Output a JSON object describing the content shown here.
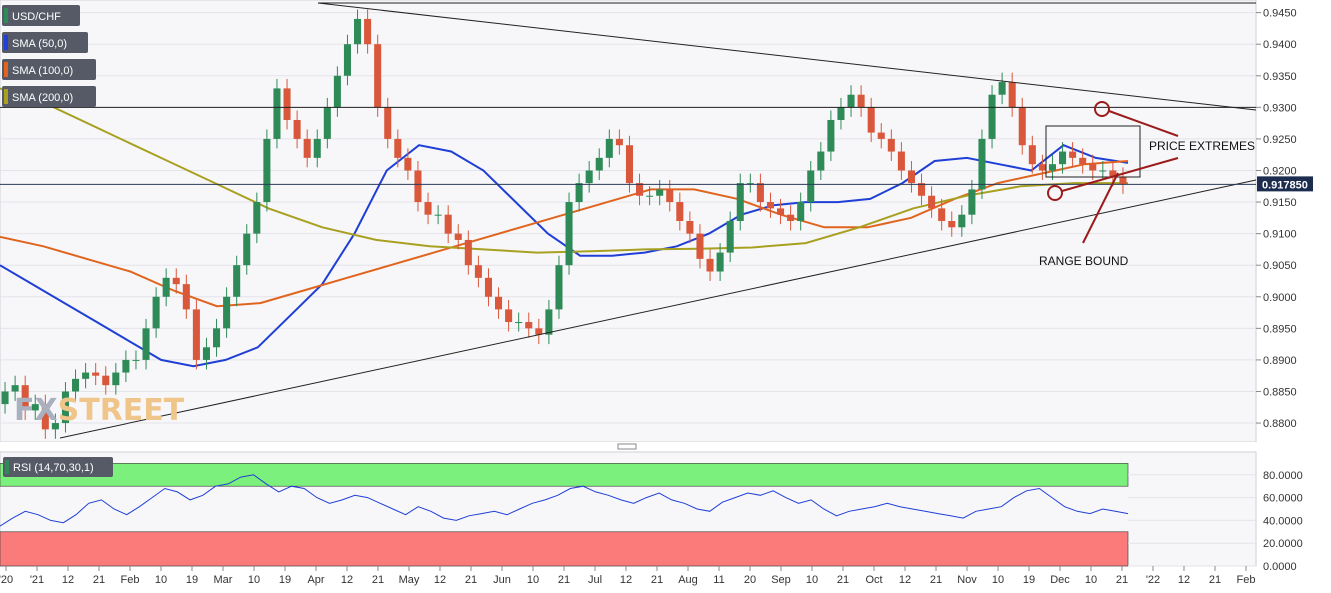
{
  "symbol": "USD/CHF",
  "legend": [
    {
      "label": "USD/CHF",
      "color": "#2e8b57"
    },
    {
      "label": "SMA (50,0)",
      "color": "#1f3fd6"
    },
    {
      "label": "SMA (100,0)",
      "color": "#e0641e"
    },
    {
      "label": "SMA (200,0)",
      "color": "#a8a020"
    }
  ],
  "watermark": {
    "part1": "FX",
    "part2": "STREET"
  },
  "last_price": "0.917850",
  "annotations": {
    "price_extremes": "PRICE EXTREMES",
    "range_bound": "RANGE BOUND"
  },
  "rsi_label": "RSI (14,70,30,1)",
  "colors": {
    "up": "#2e8b57",
    "down": "#d9573b",
    "sma50": "#1f3fd6",
    "sma100": "#e0641e",
    "sma200": "#a8a020",
    "rsi": "#1f3fd6",
    "overbought": "#7cf07c",
    "oversold": "#fb7b7b",
    "annotation": "#9b1c1c"
  },
  "chart_data": [
    {
      "type": "candlestick",
      "title": "USD/CHF",
      "y_ticks": [
        "0.9450",
        "0.9400",
        "0.9350",
        "0.9300",
        "0.9250",
        "0.9200",
        "0.9150",
        "0.9100",
        "0.9050",
        "0.9000",
        "0.8950",
        "0.8900",
        "0.8850",
        "0.8800"
      ],
      "ylim": [
        0.877,
        0.947
      ],
      "x_ticks": [
        "'20",
        "'21",
        "12",
        "21",
        "Feb",
        "10",
        "19",
        "Mar",
        "10",
        "19",
        "Apr",
        "12",
        "21",
        "May",
        "12",
        "21",
        "Jun",
        "10",
        "21",
        "Jul",
        "12",
        "21",
        "Aug",
        "11",
        "20",
        "Sep",
        "10",
        "21",
        "Oct",
        "12",
        "21",
        "Nov",
        "10",
        "19",
        "Dec",
        "10",
        "21",
        "'22",
        "12",
        "21",
        "Feb"
      ],
      "series": [
        {
          "name": "USD/CHF",
          "type": "candlestick",
          "close": [
            0.885,
            0.886,
            0.882,
            0.883,
            0.879,
            0.88,
            0.885,
            0.887,
            0.888,
            0.8875,
            0.886,
            0.888,
            0.89,
            0.89,
            0.895,
            0.9,
            0.903,
            0.902,
            0.898,
            0.89,
            0.892,
            0.895,
            0.9,
            0.905,
            0.91,
            0.915,
            0.925,
            0.933,
            0.928,
            0.925,
            0.922,
            0.925,
            0.93,
            0.935,
            0.94,
            0.944,
            0.94,
            0.93,
            0.925,
            0.922,
            0.92,
            0.915,
            0.913,
            0.913,
            0.91,
            0.909,
            0.905,
            0.903,
            0.9,
            0.898,
            0.896,
            0.896,
            0.895,
            0.894,
            0.898,
            0.905,
            0.915,
            0.918,
            0.92,
            0.922,
            0.925,
            0.924,
            0.918,
            0.916,
            0.916,
            0.917,
            0.915,
            0.912,
            0.91,
            0.906,
            0.904,
            0.907,
            0.912,
            0.918,
            0.918,
            0.915,
            0.914,
            0.913,
            0.912,
            0.915,
            0.92,
            0.923,
            0.928,
            0.93,
            0.932,
            0.93,
            0.926,
            0.925,
            0.923,
            0.92,
            0.918,
            0.916,
            0.914,
            0.912,
            0.911,
            0.913,
            0.917,
            0.925,
            0.932,
            0.934,
            0.93,
            0.924,
            0.921,
            0.92,
            0.921,
            0.923,
            0.922,
            0.921,
            0.92,
            0.92,
            0.919,
            0.9178
          ]
        },
        {
          "name": "SMA (50,0)",
          "values": [
            0.905,
            0.902,
            0.899,
            0.896,
            0.893,
            0.89,
            0.889,
            0.89,
            0.892,
            0.897,
            0.902,
            0.91,
            0.92,
            0.924,
            0.923,
            0.92,
            0.915,
            0.91,
            0.9065,
            0.9065,
            0.907,
            0.908,
            0.91,
            0.913,
            0.9145,
            0.915,
            0.915,
            0.9155,
            0.918,
            0.9215,
            0.922,
            0.921,
            0.92,
            0.924,
            0.922,
            0.9212
          ]
        },
        {
          "name": "SMA (100,0)",
          "values": [
            0.9095,
            0.908,
            0.906,
            0.904,
            0.901,
            0.8985,
            0.899,
            0.901,
            0.903,
            0.905,
            0.907,
            0.909,
            0.911,
            0.913,
            0.915,
            0.917,
            0.917,
            0.9155,
            0.913,
            0.911,
            0.911,
            0.9125,
            0.9155,
            0.918,
            0.9195,
            0.921,
            0.9215
          ]
        },
        {
          "name": "SMA (200,0)",
          "values": [
            0.933,
            0.93,
            0.926,
            0.922,
            0.918,
            0.914,
            0.911,
            0.909,
            0.908,
            0.9075,
            0.907,
            0.9072,
            0.9075,
            0.9076,
            0.9078,
            0.9085,
            0.911,
            0.914,
            0.916,
            0.9175,
            0.918,
            0.918
          ]
        }
      ],
      "horizontal_lines": [
        0.93,
        0.9178
      ],
      "grid": true
    },
    {
      "type": "line",
      "title": "RSI (14,70,30,1)",
      "y_ticks": [
        "80.0000",
        "60.0000",
        "40.0000",
        "20.0000",
        "0.0000"
      ],
      "ylim": [
        0,
        100
      ],
      "overbought": 70,
      "oversold": 30,
      "series": [
        {
          "name": "RSI (14,70,30,1)",
          "values": [
            35,
            42,
            48,
            45,
            40,
            38,
            45,
            55,
            58,
            50,
            45,
            52,
            60,
            68,
            65,
            58,
            62,
            70,
            72,
            78,
            80,
            72,
            65,
            70,
            68,
            60,
            55,
            58,
            62,
            60,
            55,
            50,
            45,
            52,
            48,
            42,
            40,
            44,
            46,
            48,
            45,
            50,
            55,
            58,
            62,
            68,
            70,
            65,
            62,
            58,
            55,
            60,
            64,
            58,
            55,
            50,
            48,
            56,
            60,
            64,
            62,
            66,
            60,
            55,
            58,
            50,
            44,
            48,
            50,
            52,
            55,
            52,
            50,
            48,
            46,
            44,
            42,
            48,
            50,
            52,
            60,
            66,
            68,
            60,
            52,
            48,
            46,
            50,
            48,
            46
          ]
        }
      ]
    }
  ]
}
